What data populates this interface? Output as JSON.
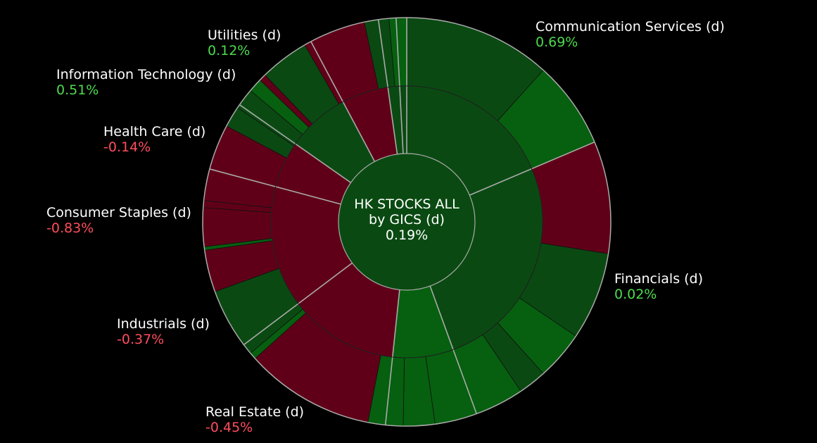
{
  "chart_data": {
    "type": "sunburst",
    "title": "HK STOCKS ALL",
    "subtitle": "by GICS (d)",
    "value": "0.19%",
    "colors": {
      "positive_dark": "#0a4a12",
      "positive": "#06600f",
      "negative": "#600018",
      "stroke": "#aaaaaa",
      "positive_text": "#4ddb4d",
      "negative_text": "#ff4d5e"
    },
    "sectors": [
      {
        "name": "Communication Services (d)",
        "value": "0.69%",
        "sign": "pos"
      },
      {
        "name": "Financials (d)",
        "value": "0.02%",
        "sign": "pos"
      },
      {
        "name": "Real Estate (d)",
        "value": "-0.45%",
        "sign": "neg"
      },
      {
        "name": "Industrials (d)",
        "value": "-0.37%",
        "sign": "neg"
      },
      {
        "name": "Consumer Staples (d)",
        "value": "-0.83%",
        "sign": "neg"
      },
      {
        "name": "Health Care (d)",
        "value": "-0.14%",
        "sign": "neg"
      },
      {
        "name": "Information Technology (d)",
        "value": "0.51%",
        "sign": "pos"
      },
      {
        "name": "Utilities (d)",
        "value": "0.12%",
        "sign": "pos"
      }
    ]
  }
}
